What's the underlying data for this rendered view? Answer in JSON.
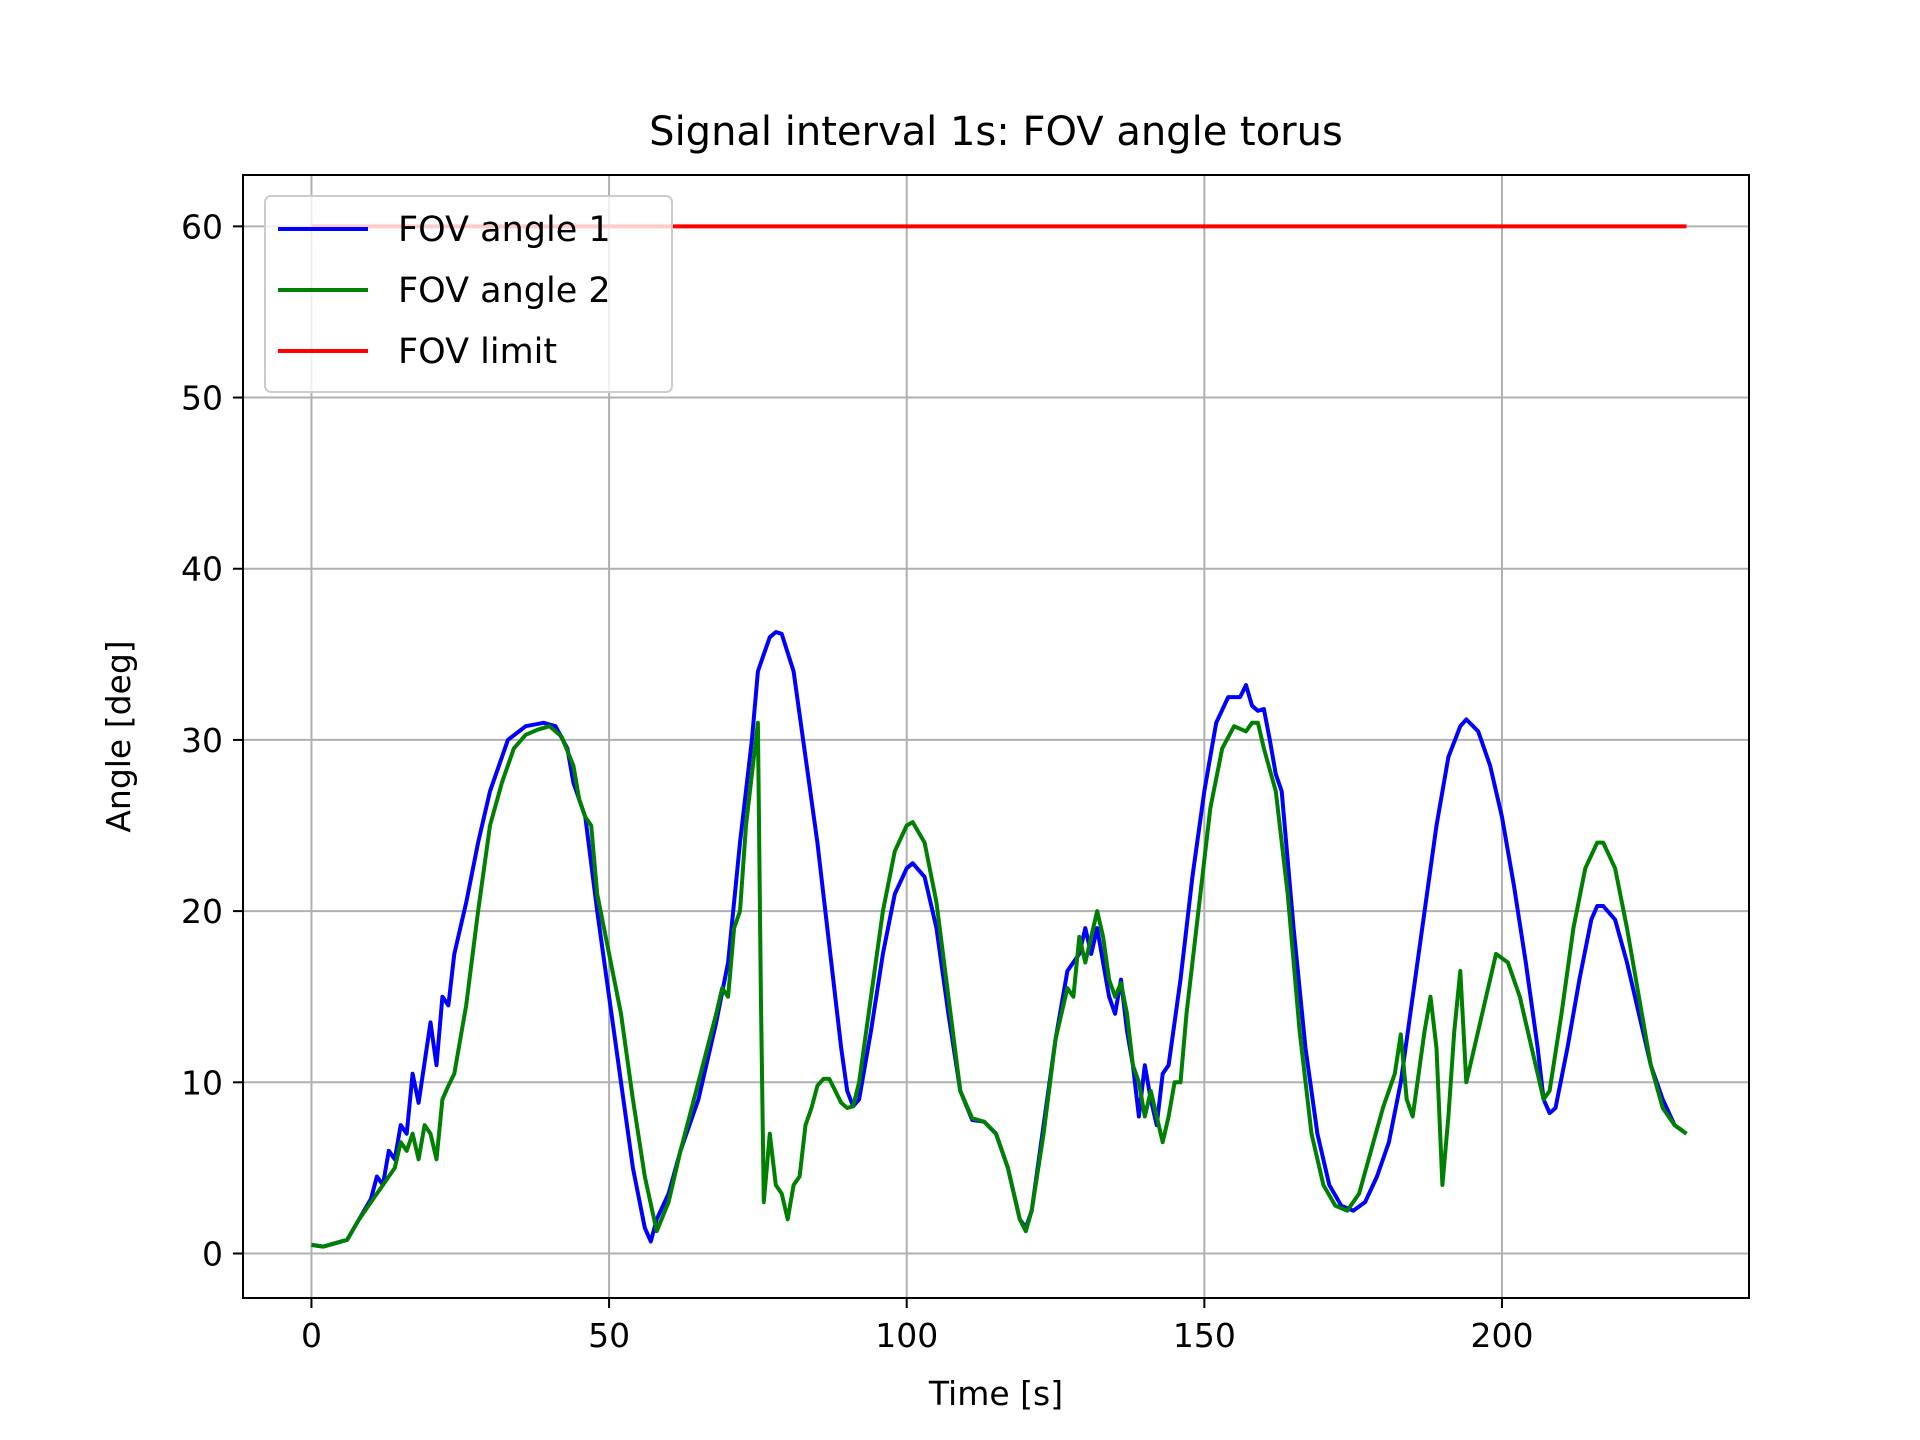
{
  "chart_data": {
    "type": "line",
    "title": "Signal interval 1s: FOV angle torus",
    "xlabel": "Time [s]",
    "ylabel": "Angle [deg]",
    "xlim": [
      -11.5,
      241.5
    ],
    "ylim": [
      -2.6,
      63
    ],
    "xticks": [
      0,
      50,
      100,
      150,
      200
    ],
    "yticks": [
      0,
      10,
      20,
      30,
      40,
      50,
      60
    ],
    "grid": true,
    "legend_position": "upper-left",
    "series": [
      {
        "name": "FOV angle 1",
        "color": "#0000ff",
        "points": [
          [
            0,
            0.5
          ],
          [
            2,
            0.4
          ],
          [
            4,
            0.6
          ],
          [
            6,
            0.8
          ],
          [
            8,
            2
          ],
          [
            10,
            3.2
          ],
          [
            11,
            4.5
          ],
          [
            12,
            4
          ],
          [
            13,
            6
          ],
          [
            14,
            5.5
          ],
          [
            15,
            7.5
          ],
          [
            16,
            7
          ],
          [
            17,
            10.5
          ],
          [
            18,
            8.8
          ],
          [
            20,
            13.5
          ],
          [
            21,
            11
          ],
          [
            22,
            15
          ],
          [
            23,
            14.5
          ],
          [
            24,
            17.5
          ],
          [
            26,
            20.5
          ],
          [
            28,
            24
          ],
          [
            30,
            27
          ],
          [
            33,
            30
          ],
          [
            36,
            30.8
          ],
          [
            39,
            31
          ],
          [
            41,
            30.8
          ],
          [
            43,
            29.5
          ],
          [
            44,
            27.5
          ],
          [
            46,
            25.5
          ],
          [
            48,
            20
          ],
          [
            50,
            15
          ],
          [
            52,
            10
          ],
          [
            54,
            5
          ],
          [
            56,
            1.5
          ],
          [
            57,
            0.7
          ],
          [
            58,
            2
          ],
          [
            60,
            3.5
          ],
          [
            62,
            6
          ],
          [
            65,
            9
          ],
          [
            68,
            13.5
          ],
          [
            70,
            17
          ],
          [
            72,
            24
          ],
          [
            74,
            30
          ],
          [
            75,
            34
          ],
          [
            76,
            35
          ],
          [
            77,
            36
          ],
          [
            78,
            36.3
          ],
          [
            79,
            36.2
          ],
          [
            81,
            34
          ],
          [
            83,
            29
          ],
          [
            85,
            24
          ],
          [
            87,
            18
          ],
          [
            89,
            12
          ],
          [
            90,
            9.5
          ],
          [
            91,
            8.6
          ],
          [
            92,
            9
          ],
          [
            94,
            13
          ],
          [
            96,
            17.5
          ],
          [
            98,
            21
          ],
          [
            100,
            22.5
          ],
          [
            101,
            22.8
          ],
          [
            103,
            22
          ],
          [
            105,
            19
          ],
          [
            107,
            14
          ],
          [
            109,
            9.5
          ],
          [
            111,
            7.8
          ],
          [
            113,
            7.7
          ],
          [
            115,
            7
          ],
          [
            117,
            5
          ],
          [
            119,
            2
          ],
          [
            120,
            1.5
          ],
          [
            121,
            2.5
          ],
          [
            123,
            7.5
          ],
          [
            125,
            12.5
          ],
          [
            127,
            16.5
          ],
          [
            129,
            17.5
          ],
          [
            130,
            19
          ],
          [
            131,
            17.5
          ],
          [
            132,
            19
          ],
          [
            133,
            17
          ],
          [
            134,
            15
          ],
          [
            135,
            14
          ],
          [
            136,
            16
          ],
          [
            137,
            13
          ],
          [
            138,
            11
          ],
          [
            139,
            8
          ],
          [
            140,
            11
          ],
          [
            141,
            9
          ],
          [
            142,
            7.5
          ],
          [
            143,
            10.5
          ],
          [
            144,
            11
          ],
          [
            146,
            16
          ],
          [
            148,
            22
          ],
          [
            150,
            27
          ],
          [
            152,
            31
          ],
          [
            154,
            32.5
          ],
          [
            156,
            32.5
          ],
          [
            157,
            33.2
          ],
          [
            158,
            32
          ],
          [
            159,
            31.7
          ],
          [
            160,
            31.8
          ],
          [
            161,
            30
          ],
          [
            162,
            28
          ],
          [
            163,
            27
          ],
          [
            165,
            19
          ],
          [
            167,
            12
          ],
          [
            169,
            7
          ],
          [
            171,
            4
          ],
          [
            173,
            2.8
          ],
          [
            175,
            2.5
          ],
          [
            177,
            3
          ],
          [
            179,
            4.5
          ],
          [
            181,
            6.5
          ],
          [
            183,
            10
          ],
          [
            185,
            15
          ],
          [
            187,
            20
          ],
          [
            189,
            25
          ],
          [
            191,
            29
          ],
          [
            193,
            30.8
          ],
          [
            194,
            31.2
          ],
          [
            196,
            30.5
          ],
          [
            198,
            28.5
          ],
          [
            200,
            25.5
          ],
          [
            202,
            21.5
          ],
          [
            204,
            17
          ],
          [
            206,
            12
          ],
          [
            207,
            9
          ],
          [
            208,
            8.2
          ],
          [
            209,
            8.5
          ],
          [
            211,
            12
          ],
          [
            213,
            16
          ],
          [
            215,
            19.5
          ],
          [
            216,
            20.3
          ],
          [
            217,
            20.3
          ],
          [
            219,
            19.5
          ],
          [
            221,
            17
          ],
          [
            223,
            14
          ],
          [
            225,
            11
          ],
          [
            227,
            9
          ],
          [
            229,
            7.5
          ],
          [
            231,
            7
          ]
        ]
      },
      {
        "name": "FOV angle 2",
        "color": "#008000",
        "points": [
          [
            0,
            0.5
          ],
          [
            2,
            0.4
          ],
          [
            4,
            0.6
          ],
          [
            6,
            0.8
          ],
          [
            8,
            2
          ],
          [
            10,
            3
          ],
          [
            12,
            4
          ],
          [
            14,
            5
          ],
          [
            15,
            6.5
          ],
          [
            16,
            6
          ],
          [
            17,
            7
          ],
          [
            18,
            5.5
          ],
          [
            19,
            7.5
          ],
          [
            20,
            7
          ],
          [
            21,
            5.5
          ],
          [
            22,
            9
          ],
          [
            23,
            9.8
          ],
          [
            24,
            10.5
          ],
          [
            26,
            14.5
          ],
          [
            28,
            20
          ],
          [
            30,
            25
          ],
          [
            32,
            27.5
          ],
          [
            34,
            29.5
          ],
          [
            36,
            30.3
          ],
          [
            38,
            30.6
          ],
          [
            40,
            30.8
          ],
          [
            42,
            30.2
          ],
          [
            44,
            28.5
          ],
          [
            45,
            26.5
          ],
          [
            46,
            25.5
          ],
          [
            47,
            25
          ],
          [
            48,
            21
          ],
          [
            50,
            17.5
          ],
          [
            52,
            14
          ],
          [
            54,
            9
          ],
          [
            56,
            4.5
          ],
          [
            58,
            1.3
          ],
          [
            60,
            3
          ],
          [
            62,
            6
          ],
          [
            65,
            10
          ],
          [
            68,
            14
          ],
          [
            69,
            15.5
          ],
          [
            70,
            15
          ],
          [
            71,
            19
          ],
          [
            72,
            20
          ],
          [
            73,
            25
          ],
          [
            74,
            28
          ],
          [
            75,
            31
          ],
          [
            75.5,
            15
          ],
          [
            76,
            3
          ],
          [
            77,
            7
          ],
          [
            78,
            4
          ],
          [
            79,
            3.5
          ],
          [
            80,
            2
          ],
          [
            81,
            4
          ],
          [
            82,
            4.5
          ],
          [
            83,
            7.5
          ],
          [
            84,
            8.5
          ],
          [
            85,
            9.8
          ],
          [
            86,
            10.2
          ],
          [
            87,
            10.2
          ],
          [
            88,
            9.5
          ],
          [
            89,
            8.8
          ],
          [
            90,
            8.5
          ],
          [
            91,
            8.6
          ],
          [
            92,
            10
          ],
          [
            94,
            15
          ],
          [
            96,
            20
          ],
          [
            98,
            23.5
          ],
          [
            100,
            25
          ],
          [
            101,
            25.2
          ],
          [
            103,
            24
          ],
          [
            105,
            20.5
          ],
          [
            107,
            15
          ],
          [
            109,
            9.5
          ],
          [
            111,
            7.9
          ],
          [
            113,
            7.7
          ],
          [
            115,
            7
          ],
          [
            117,
            5
          ],
          [
            119,
            2
          ],
          [
            120,
            1.3
          ],
          [
            121,
            2.5
          ],
          [
            123,
            7
          ],
          [
            125,
            12.5
          ],
          [
            127,
            15.5
          ],
          [
            128,
            15
          ],
          [
            129,
            18.5
          ],
          [
            130,
            17
          ],
          [
            131,
            18.5
          ],
          [
            132,
            20
          ],
          [
            133,
            18.5
          ],
          [
            134,
            16
          ],
          [
            135,
            15
          ],
          [
            136,
            15.8
          ],
          [
            137,
            14
          ],
          [
            138,
            11
          ],
          [
            139,
            10
          ],
          [
            140,
            8
          ],
          [
            141,
            9.5
          ],
          [
            142,
            8
          ],
          [
            143,
            6.5
          ],
          [
            144,
            8
          ],
          [
            145,
            10
          ],
          [
            146,
            10
          ],
          [
            147,
            14
          ],
          [
            149,
            20
          ],
          [
            151,
            26
          ],
          [
            153,
            29.5
          ],
          [
            155,
            30.8
          ],
          [
            157,
            30.5
          ],
          [
            158,
            31
          ],
          [
            159,
            31
          ],
          [
            160,
            29.5
          ],
          [
            162,
            27
          ],
          [
            164,
            21
          ],
          [
            166,
            13
          ],
          [
            168,
            7
          ],
          [
            170,
            4
          ],
          [
            172,
            2.8
          ],
          [
            174,
            2.5
          ],
          [
            176,
            3.5
          ],
          [
            178,
            6
          ],
          [
            180,
            8.5
          ],
          [
            182,
            10.5
          ],
          [
            183,
            12.8
          ],
          [
            184,
            9
          ],
          [
            185,
            8
          ],
          [
            187,
            13
          ],
          [
            188,
            15
          ],
          [
            189,
            12
          ],
          [
            190,
            4
          ],
          [
            191,
            8
          ],
          [
            192,
            13
          ],
          [
            193,
            16.5
          ],
          [
            194,
            10
          ],
          [
            196,
            13
          ],
          [
            198,
            16
          ],
          [
            199,
            17.5
          ],
          [
            201,
            17
          ],
          [
            203,
            15
          ],
          [
            205,
            12
          ],
          [
            207,
            9
          ],
          [
            208,
            9.5
          ],
          [
            210,
            14
          ],
          [
            212,
            19
          ],
          [
            214,
            22.5
          ],
          [
            216,
            24
          ],
          [
            217,
            24
          ],
          [
            219,
            22.5
          ],
          [
            221,
            19
          ],
          [
            223,
            15
          ],
          [
            225,
            11
          ],
          [
            227,
            8.5
          ],
          [
            229,
            7.5
          ],
          [
            231,
            7
          ]
        ]
      },
      {
        "name": "FOV limit",
        "color": "#ff0000",
        "points": [
          [
            0,
            60
          ],
          [
            231,
            60
          ]
        ]
      }
    ]
  }
}
